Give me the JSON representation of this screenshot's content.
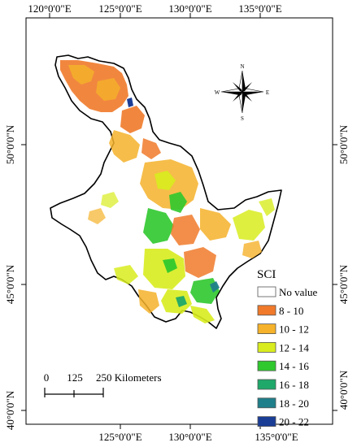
{
  "map": {
    "top_longitudes": [
      "120°0'0\"E",
      "125°0'0\"E",
      "130°0'0\"E",
      "135°0'0\"E"
    ],
    "bottom_longitudes": [
      "125°0'0\"E",
      "130°0'0\"E",
      "135°0'0\"E"
    ],
    "left_latitudes": [
      "50°0'0\"N",
      "45°0'0\"N",
      "40°0'0\"N"
    ],
    "right_latitudes": [
      "50°0'0\"N",
      "45°0'0\"N",
      "40°0'0\"N"
    ]
  },
  "compass": {
    "n": "N",
    "s": "S",
    "e": "E",
    "w": "W"
  },
  "scale_bar": {
    "labels": [
      "0",
      "125",
      "250 Kilometers"
    ]
  },
  "legend": {
    "title": "SCI",
    "items": [
      {
        "label": "No value",
        "color": "#ffffff"
      },
      {
        "label": "8 - 10",
        "color": "#f07a2a"
      },
      {
        "label": "10 - 12",
        "color": "#f5b22a"
      },
      {
        "label": "12 - 14",
        "color": "#d8ec1e"
      },
      {
        "label": "14 - 16",
        "color": "#2fc82d"
      },
      {
        "label": "16 - 18",
        "color": "#1ea86a"
      },
      {
        "label": "18 - 20",
        "color": "#1f7f8a"
      },
      {
        "label": "20 - 22",
        "color": "#1a3d96"
      }
    ]
  }
}
